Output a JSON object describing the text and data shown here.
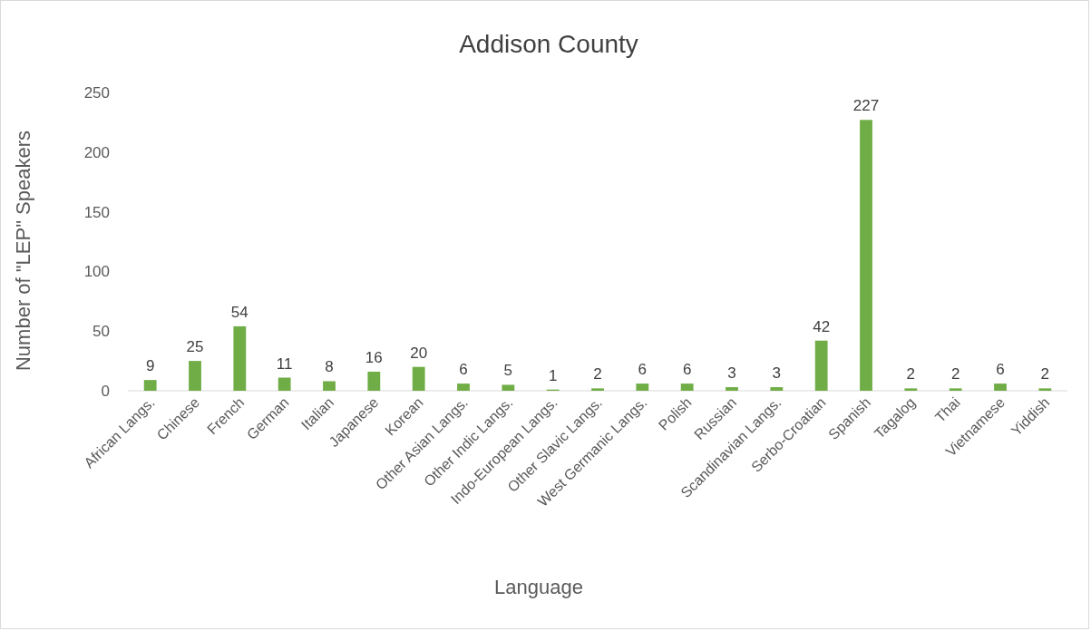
{
  "chart_data": {
    "type": "bar",
    "title": "Addison County",
    "xlabel": "Language",
    "ylabel": "Number of \"LEP\" Speakers",
    "categories": [
      "African Langs.",
      "Chinese",
      "French",
      "German",
      "Italian",
      "Japanese",
      "Korean",
      "Other Asian Langs.",
      "Other Indic Langs.",
      "Indo-European Langs.",
      "Other Slavic Langs.",
      "West Germanic Langs.",
      "Polish",
      "Russian",
      "Scandinavian Langs.",
      "Serbo-Croatian",
      "Spanish",
      "Tagalog",
      "Thai",
      "Vietnamese",
      "Yiddish"
    ],
    "values": [
      9,
      25,
      54,
      11,
      8,
      16,
      20,
      6,
      5,
      1,
      2,
      6,
      6,
      3,
      3,
      42,
      227,
      2,
      2,
      6,
      2
    ],
    "color": "#70ad47",
    "ylim": [
      0,
      250
    ],
    "yticks": [
      0,
      50,
      100,
      150,
      200,
      250
    ],
    "grid": false,
    "data_labels": true
  }
}
